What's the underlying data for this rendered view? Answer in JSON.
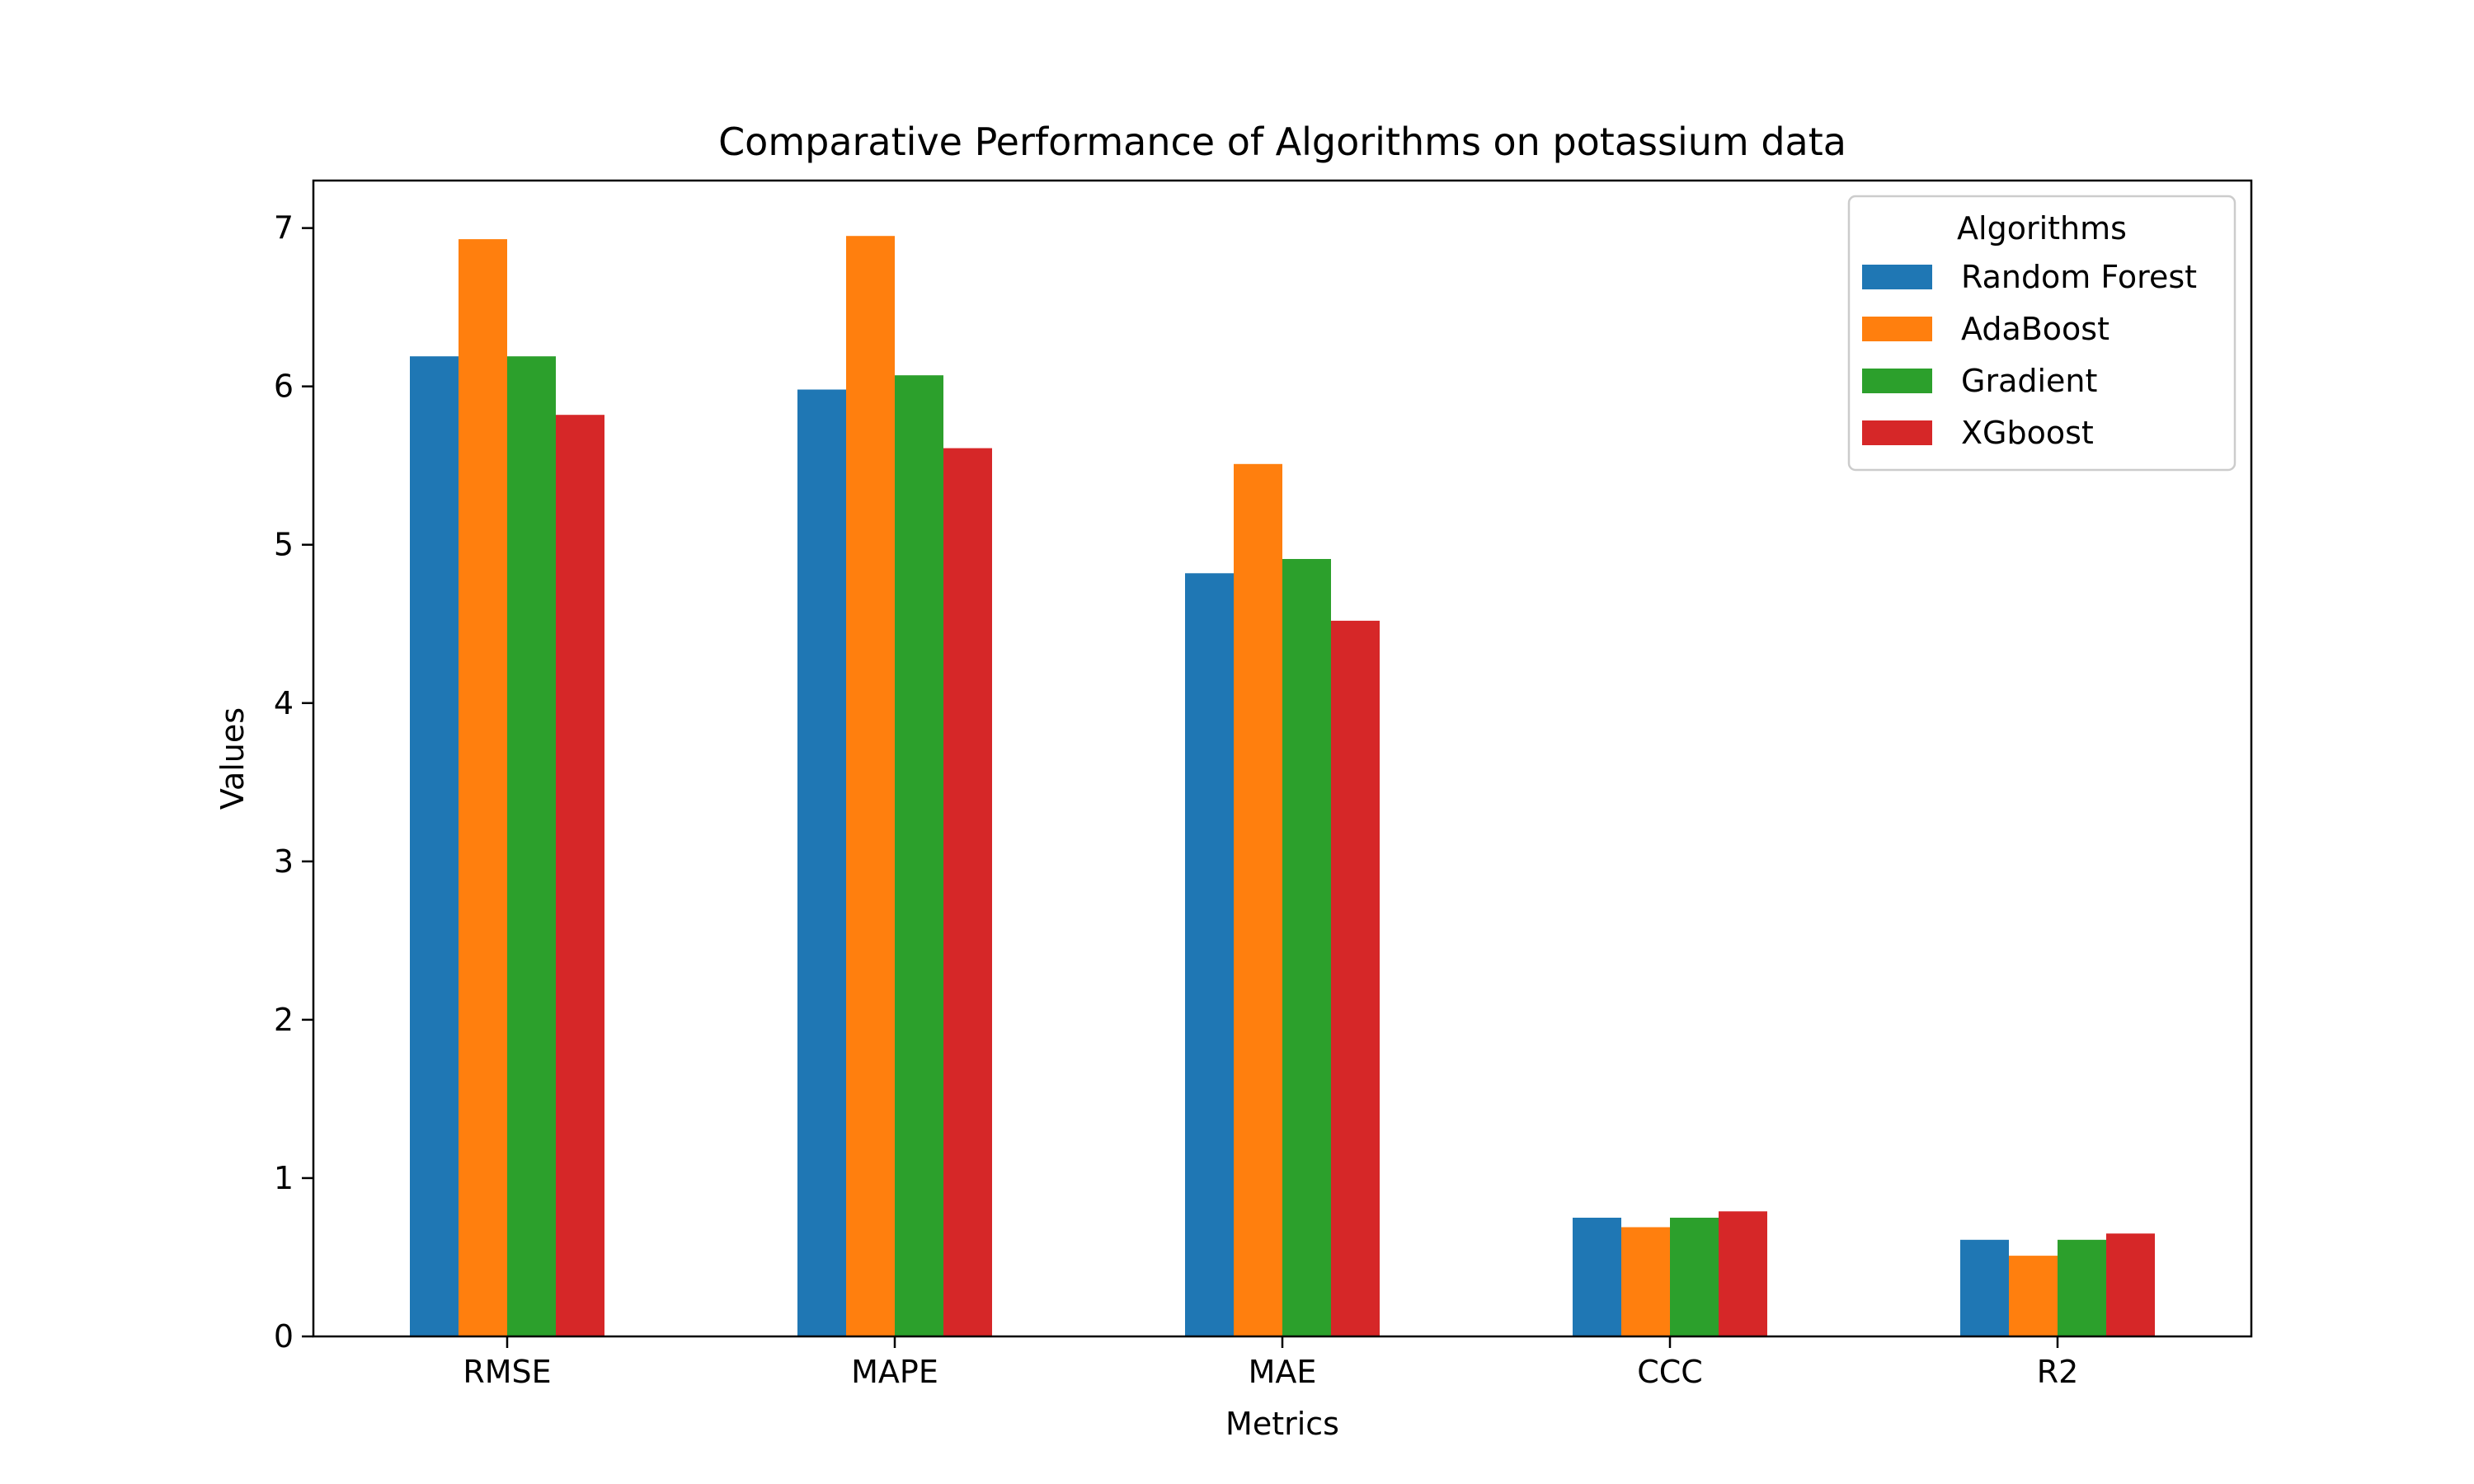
{
  "chart_data": {
    "type": "bar",
    "title": "Comparative Performance of Algorithms on potassium data",
    "xlabel": "Metrics",
    "ylabel": "Values",
    "categories": [
      "RMSE",
      "MAPE",
      "MAE",
      "CCC",
      "R2"
    ],
    "ylim": [
      0,
      7.3
    ],
    "yticks": [
      0,
      1,
      2,
      3,
      4,
      5,
      6,
      7
    ],
    "grid": false,
    "legend": {
      "title": "Algorithms",
      "placement": "top-right"
    },
    "series": [
      {
        "name": "Random Forest",
        "color": "#1f77b4",
        "values": [
          6.19,
          5.98,
          4.82,
          0.75,
          0.61
        ]
      },
      {
        "name": "AdaBoost",
        "color": "#ff7f0e",
        "values": [
          6.93,
          6.95,
          5.51,
          0.69,
          0.51
        ]
      },
      {
        "name": "Gradient",
        "color": "#2ca02c",
        "values": [
          6.19,
          6.07,
          4.91,
          0.75,
          0.61
        ]
      },
      {
        "name": "XGboost",
        "color": "#d62728",
        "values": [
          5.82,
          5.61,
          4.52,
          0.79,
          0.65
        ]
      }
    ]
  }
}
